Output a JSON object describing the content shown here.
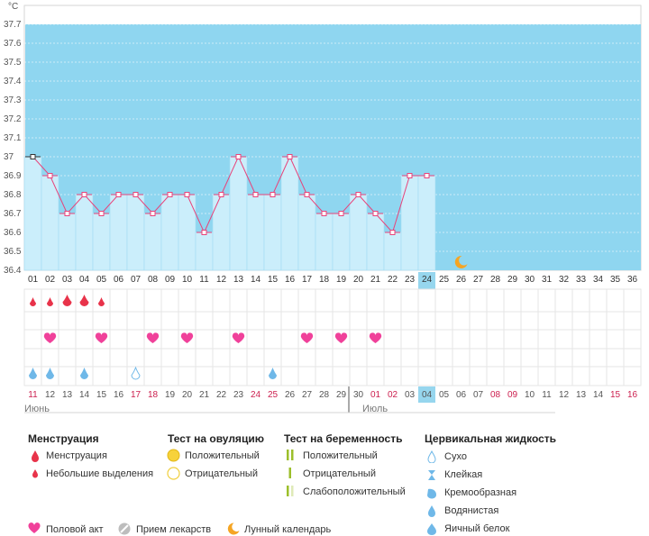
{
  "chart_data": {
    "type": "line",
    "ylabel": "°C",
    "ylim": [
      36.4,
      37.8
    ],
    "yticks": [
      "36.4",
      "36.5",
      "36.6",
      "36.7",
      "36.8",
      "36.9",
      "37",
      "37.1",
      "37.2",
      "37.3",
      "37.4",
      "37.5",
      "37.6",
      "37.7"
    ],
    "cycle_days": [
      "01",
      "02",
      "03",
      "04",
      "05",
      "06",
      "07",
      "08",
      "09",
      "10",
      "11",
      "12",
      "13",
      "14",
      "15",
      "16",
      "17",
      "18",
      "19",
      "20",
      "21",
      "22",
      "23",
      "24",
      "25",
      "26",
      "27",
      "28",
      "29",
      "30",
      "31",
      "32",
      "33",
      "34",
      "35",
      "36"
    ],
    "current_day_index": 23,
    "temperature_series": {
      "name": "",
      "values": [
        37.0,
        36.9,
        36.7,
        36.8,
        36.7,
        36.8,
        36.8,
        36.7,
        36.8,
        36.8,
        36.6,
        36.8,
        37.0,
        36.8,
        36.8,
        37.0,
        36.8,
        36.7,
        36.7,
        36.8,
        36.7,
        36.6,
        36.9,
        36.9
      ]
    },
    "calendar_dates": [
      "11",
      "12",
      "13",
      "14",
      "15",
      "16",
      "17",
      "18",
      "19",
      "20",
      "21",
      "22",
      "23",
      "24",
      "25",
      "26",
      "27",
      "28",
      "29",
      "30",
      "01",
      "02",
      "03",
      "04",
      "05",
      "06",
      "07",
      "08",
      "09",
      "10",
      "11",
      "12",
      "13",
      "14",
      "15",
      "16"
    ],
    "red_date_indices": [
      0,
      6,
      7,
      13,
      14,
      20,
      21,
      27,
      28,
      34,
      35
    ],
    "month_labels": [
      {
        "label": "Июнь",
        "start_index": 0
      },
      {
        "label": "Июль",
        "start_index": 20
      }
    ],
    "menstruation_row": [
      {
        "day_index": 0,
        "kind": "spotting"
      },
      {
        "day_index": 1,
        "kind": "spotting"
      },
      {
        "day_index": 2,
        "kind": "menstruation"
      },
      {
        "day_index": 3,
        "kind": "menstruation"
      },
      {
        "day_index": 4,
        "kind": "spotting"
      }
    ],
    "intercourse_days": [
      1,
      4,
      7,
      9,
      12,
      16,
      18,
      20
    ],
    "cervical_fluid_row": [
      {
        "day_index": 0,
        "kind": "watery"
      },
      {
        "day_index": 1,
        "kind": "watery"
      },
      {
        "day_index": 3,
        "kind": "watery"
      },
      {
        "day_index": 6,
        "kind": "dry"
      },
      {
        "day_index": 14,
        "kind": "watery"
      }
    ],
    "moon_day_index": 25
  },
  "legend": {
    "menstruation": {
      "title": "Менструация",
      "items": [
        "Менструация",
        "Небольшие выделения"
      ]
    },
    "ovulation_test": {
      "title": "Тест на овуляцию",
      "items": [
        "Положительный",
        "Отрицательный"
      ]
    },
    "pregnancy_test": {
      "title": "Тест на беременность",
      "items": [
        "Положительный",
        "Отрицательный",
        "Слабоположительный"
      ]
    },
    "cervical_fluid": {
      "title": "Цервикальная жидкость",
      "items": [
        "Сухо",
        "Клейкая",
        "Кремообразная",
        "Водянистая",
        "Яичный белок"
      ]
    },
    "bottom": [
      "Половой акт",
      "Прием лекарств",
      "Лунный календарь"
    ]
  },
  "colors": {
    "sky": "#8fd6f0",
    "bar_fill": "#cbeefb",
    "bar_edge": "#a2dcf4",
    "line": "#e8437a",
    "drop_red": "#e8334a",
    "heart": "#f0419a",
    "drop_blue": "#6fb8e8",
    "moon": "#f5a524",
    "yellow": "#f7d23b",
    "green": "#9cbf2b",
    "current_day": "#96d6ee",
    "red_text": "#cc1f4f",
    "grid": "#e6e6e6"
  }
}
